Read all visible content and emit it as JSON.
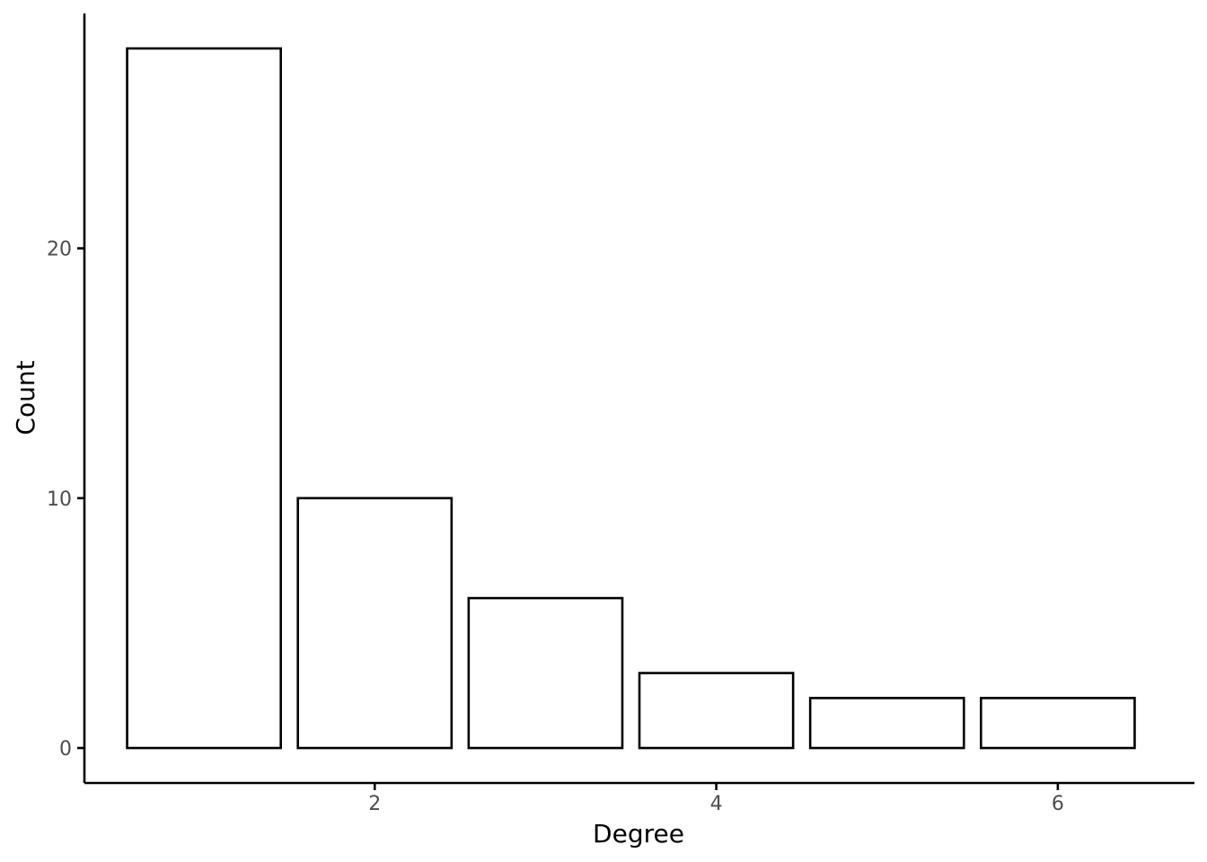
{
  "chart_data": {
    "type": "bar",
    "title": "",
    "xlabel": "Degree",
    "ylabel": "Count",
    "categories": [
      1,
      2,
      3,
      4,
      5,
      6
    ],
    "values": [
      28,
      10,
      6,
      3,
      2,
      2
    ],
    "x_ticks": [
      2,
      4,
      6
    ],
    "y_ticks": [
      0,
      10,
      20
    ],
    "xlim": [
      0.3,
      6.8
    ],
    "ylim": [
      -1.4,
      29.4
    ],
    "grid": false,
    "legend": "none",
    "bar_fill": "#ffffff",
    "bar_stroke": "#000000",
    "tick_label_color": "#4d4d4d"
  }
}
